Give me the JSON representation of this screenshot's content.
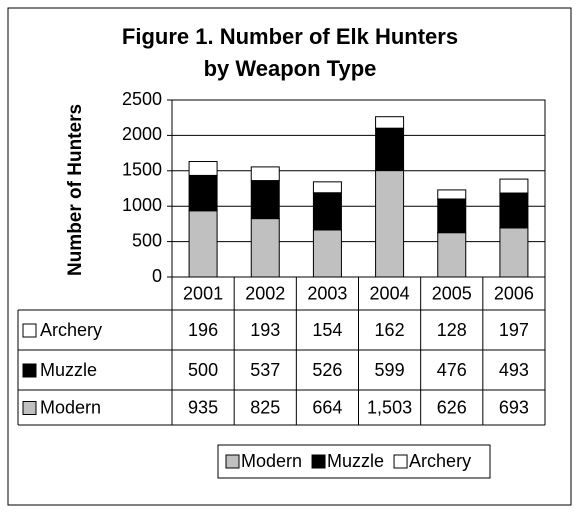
{
  "chart_data": {
    "type": "stacked_bar",
    "title": "Figure 1. Number of Elk Hunters",
    "subtitle": "by Weapon Type",
    "y_label": "Number of Hunters",
    "categories": [
      "2001",
      "2002",
      "2003",
      "2004",
      "2005",
      "2006"
    ],
    "series": [
      {
        "name": "Modern",
        "color": "#c0c0c0",
        "values": [
          935,
          825,
          664,
          1503,
          626,
          693
        ],
        "value_labels": [
          "935",
          "825",
          "664",
          "1,503",
          "626",
          "693"
        ]
      },
      {
        "name": "Muzzle",
        "color": "#000000",
        "values": [
          500,
          537,
          526,
          599,
          476,
          493
        ]
      },
      {
        "name": "Archery",
        "color": "#ffffff",
        "values": [
          196,
          193,
          154,
          162,
          128,
          197
        ]
      }
    ],
    "ylim": [
      0,
      2500
    ],
    "yticks": [
      0,
      500,
      1000,
      1500,
      2000,
      2500
    ],
    "grid": true
  }
}
